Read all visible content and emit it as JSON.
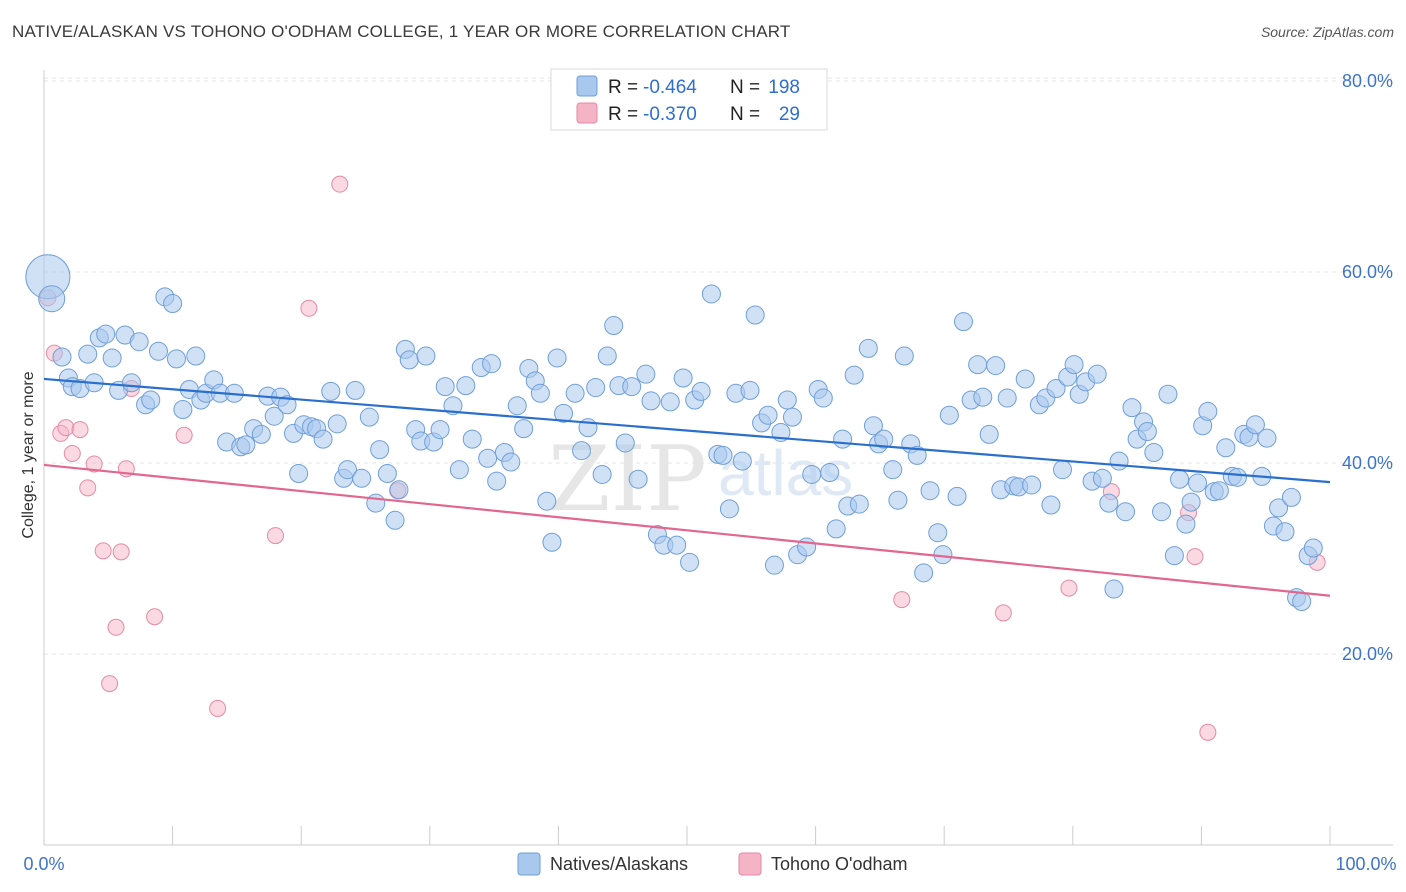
{
  "header": {
    "title": "NATIVE/ALASKAN VS TOHONO O'ODHAM COLLEGE, 1 YEAR OR MORE CORRELATION CHART",
    "source": "Source: ZipAtlas.com"
  },
  "watermark": {
    "zip": "ZIP",
    "atlas": "atlas"
  },
  "legend": {
    "rows": [
      {
        "r_label": "R =",
        "r_value": "-0.464",
        "n_label": "N =",
        "n_value": "198",
        "color": "#a9c8ee"
      },
      {
        "r_label": "R =",
        "r_value": "-0.370",
        "n_label": "N =",
        "n_value": "29",
        "color": "#f5b3c6"
      }
    ]
  },
  "chart_data": {
    "type": "scatter",
    "title": "NATIVE/ALASKAN VS TOHONO O'ODHAM COLLEGE, 1 YEAR OR MORE CORRELATION CHART",
    "ylabel": "College, 1 year or more",
    "xlabel": "",
    "xlim": [
      0,
      100
    ],
    "ylim": [
      0,
      82
    ],
    "x_tick_labels": [
      "0.0%",
      "100.0%"
    ],
    "y_ticks": [
      20,
      40,
      60,
      80
    ],
    "y_tick_labels": [
      "20.0%",
      "40.0%",
      "60.0%",
      "80.0%"
    ],
    "grid": true,
    "legend_position": "top-center",
    "series": [
      {
        "name": "Natives/Alaskans",
        "color": "#a9c8ee",
        "stroke": "#6f9fd8",
        "trend": {
          "x": [
            0,
            100
          ],
          "y": [
            48.8,
            38.0
          ],
          "color": "#2a6fcd"
        },
        "points": [
          [
            0.3,
            59.5,
            22
          ],
          [
            0.6,
            57.2,
            13
          ],
          [
            1.4,
            51.1,
            9
          ],
          [
            1.9,
            48.9,
            9
          ],
          [
            2.2,
            48.0,
            9
          ],
          [
            2.8,
            47.8,
            9
          ],
          [
            3.4,
            51.4,
            9
          ],
          [
            3.9,
            48.4,
            9
          ],
          [
            4.3,
            53.1,
            9
          ],
          [
            4.8,
            53.5,
            9
          ],
          [
            5.3,
            51.0,
            9
          ],
          [
            5.8,
            47.6,
            9
          ],
          [
            6.3,
            53.4,
            9
          ],
          [
            6.8,
            48.4,
            9
          ],
          [
            7.4,
            52.7,
            9
          ],
          [
            7.9,
            46.1,
            9
          ],
          [
            8.3,
            46.6,
            9
          ],
          [
            8.9,
            51.7,
            9
          ],
          [
            9.4,
            57.4,
            9
          ],
          [
            10.0,
            56.7,
            9
          ],
          [
            10.3,
            50.9,
            9
          ],
          [
            10.8,
            45.6,
            9
          ],
          [
            11.3,
            47.7,
            9
          ],
          [
            11.8,
            51.2,
            9
          ],
          [
            12.2,
            46.6,
            9
          ],
          [
            12.6,
            47.3,
            9
          ],
          [
            13.2,
            48.7,
            9
          ],
          [
            13.7,
            47.3,
            9
          ],
          [
            14.2,
            42.2,
            9
          ],
          [
            14.8,
            47.3,
            9
          ],
          [
            15.3,
            41.7,
            9
          ],
          [
            15.7,
            41.9,
            9
          ],
          [
            16.3,
            43.6,
            9
          ],
          [
            16.9,
            43.0,
            9
          ],
          [
            17.4,
            47.0,
            9
          ],
          [
            17.9,
            44.9,
            9
          ],
          [
            18.4,
            46.9,
            9
          ],
          [
            18.9,
            46.1,
            9
          ],
          [
            19.4,
            43.1,
            9
          ],
          [
            19.8,
            38.9,
            9
          ],
          [
            20.2,
            44.0,
            9
          ],
          [
            20.8,
            43.8,
            9
          ],
          [
            21.2,
            43.6,
            9
          ],
          [
            21.7,
            42.5,
            9
          ],
          [
            22.3,
            47.5,
            9
          ],
          [
            22.8,
            44.1,
            9
          ],
          [
            23.3,
            38.4,
            9
          ],
          [
            23.6,
            39.3,
            9
          ],
          [
            24.2,
            47.6,
            9
          ],
          [
            24.7,
            38.4,
            9
          ],
          [
            25.3,
            44.8,
            9
          ],
          [
            25.8,
            35.8,
            9
          ],
          [
            26.1,
            41.4,
            9
          ],
          [
            26.7,
            38.9,
            9
          ],
          [
            27.3,
            34.0,
            9
          ],
          [
            27.6,
            37.2,
            9
          ],
          [
            28.1,
            51.9,
            9
          ],
          [
            28.4,
            50.8,
            9
          ],
          [
            28.9,
            43.5,
            9
          ],
          [
            29.3,
            42.3,
            9
          ],
          [
            29.7,
            51.2,
            9
          ],
          [
            30.3,
            42.2,
            9
          ],
          [
            30.8,
            43.5,
            9
          ],
          [
            31.2,
            48.0,
            9
          ],
          [
            31.8,
            46.0,
            9
          ],
          [
            32.3,
            39.3,
            9
          ],
          [
            32.8,
            48.1,
            9
          ],
          [
            33.3,
            42.5,
            9
          ],
          [
            34.0,
            50.0,
            9
          ],
          [
            34.5,
            40.5,
            9
          ],
          [
            34.8,
            50.4,
            9
          ],
          [
            35.2,
            38.1,
            9
          ],
          [
            35.8,
            41.1,
            9
          ],
          [
            36.3,
            40.1,
            9
          ],
          [
            36.8,
            46.0,
            9
          ],
          [
            37.3,
            43.6,
            9
          ],
          [
            37.7,
            49.9,
            9
          ],
          [
            38.2,
            48.6,
            9
          ],
          [
            38.6,
            47.3,
            9
          ],
          [
            39.1,
            36.0,
            9
          ],
          [
            39.5,
            31.7,
            9
          ],
          [
            39.9,
            51.0,
            9
          ],
          [
            40.4,
            45.2,
            9
          ],
          [
            41.3,
            47.3,
            9
          ],
          [
            41.8,
            41.3,
            9
          ],
          [
            42.3,
            43.7,
            9
          ],
          [
            42.9,
            47.9,
            9
          ],
          [
            43.4,
            38.8,
            9
          ],
          [
            43.8,
            51.2,
            9
          ],
          [
            44.3,
            54.4,
            9
          ],
          [
            44.7,
            48.1,
            9
          ],
          [
            45.2,
            42.1,
            9
          ],
          [
            45.7,
            48.0,
            9
          ],
          [
            46.2,
            38.3,
            9
          ],
          [
            46.8,
            49.3,
            9
          ],
          [
            47.2,
            46.5,
            9
          ],
          [
            47.7,
            32.5,
            9
          ],
          [
            48.2,
            31.4,
            9
          ],
          [
            48.7,
            46.4,
            9
          ],
          [
            49.2,
            31.4,
            9
          ],
          [
            49.7,
            48.9,
            9
          ],
          [
            50.2,
            29.6,
            9
          ],
          [
            50.6,
            46.6,
            9
          ],
          [
            51.1,
            47.5,
            9
          ],
          [
            51.9,
            57.7,
            9
          ],
          [
            52.4,
            40.9,
            9
          ],
          [
            52.8,
            40.8,
            9
          ],
          [
            53.3,
            35.2,
            9
          ],
          [
            53.8,
            47.3,
            9
          ],
          [
            54.3,
            40.2,
            9
          ],
          [
            54.9,
            47.6,
            9
          ],
          [
            55.3,
            55.5,
            9
          ],
          [
            55.8,
            44.2,
            9
          ],
          [
            56.3,
            45.0,
            9
          ],
          [
            56.8,
            29.3,
            9
          ],
          [
            57.3,
            43.2,
            9
          ],
          [
            57.8,
            46.6,
            9
          ],
          [
            58.2,
            44.8,
            9
          ],
          [
            58.6,
            30.4,
            9
          ],
          [
            59.3,
            31.2,
            9
          ],
          [
            59.7,
            38.8,
            9
          ],
          [
            60.2,
            47.7,
            9
          ],
          [
            60.6,
            46.8,
            9
          ],
          [
            61.1,
            39.0,
            9
          ],
          [
            61.6,
            33.1,
            9
          ],
          [
            62.1,
            42.5,
            9
          ],
          [
            62.5,
            35.5,
            9
          ],
          [
            63.0,
            49.2,
            9
          ],
          [
            63.4,
            35.7,
            9
          ],
          [
            64.1,
            52.0,
            9
          ],
          [
            64.5,
            43.9,
            9
          ],
          [
            64.9,
            42.0,
            9
          ],
          [
            65.3,
            42.5,
            9
          ],
          [
            66.0,
            39.3,
            9
          ],
          [
            66.4,
            36.1,
            9
          ],
          [
            66.9,
            51.2,
            9
          ],
          [
            67.4,
            42.0,
            9
          ],
          [
            67.9,
            40.8,
            9
          ],
          [
            68.4,
            28.5,
            9
          ],
          [
            68.9,
            37.1,
            9
          ],
          [
            69.5,
            32.7,
            9
          ],
          [
            69.9,
            30.4,
            9
          ],
          [
            70.4,
            45.0,
            9
          ],
          [
            71.0,
            36.5,
            9
          ],
          [
            71.5,
            54.8,
            9
          ],
          [
            72.1,
            46.6,
            9
          ],
          [
            72.6,
            50.3,
            9
          ],
          [
            73.0,
            46.9,
            9
          ],
          [
            73.5,
            43.0,
            9
          ],
          [
            74.0,
            50.2,
            9
          ],
          [
            74.4,
            37.2,
            9
          ],
          [
            74.9,
            46.8,
            9
          ],
          [
            75.4,
            37.6,
            9
          ],
          [
            75.8,
            37.5,
            9
          ],
          [
            76.3,
            48.8,
            9
          ],
          [
            76.8,
            37.7,
            9
          ],
          [
            77.4,
            46.1,
            9
          ],
          [
            77.9,
            46.8,
            9
          ],
          [
            78.3,
            35.6,
            9
          ],
          [
            78.7,
            47.8,
            9
          ],
          [
            79.2,
            39.3,
            9
          ],
          [
            79.6,
            49.0,
            9
          ],
          [
            80.1,
            50.3,
            9
          ],
          [
            80.5,
            47.2,
            9
          ],
          [
            81.0,
            48.5,
            9
          ],
          [
            81.5,
            38.1,
            9
          ],
          [
            81.9,
            49.3,
            9
          ],
          [
            82.3,
            38.4,
            9
          ],
          [
            82.8,
            35.8,
            9
          ],
          [
            83.2,
            26.8,
            9
          ],
          [
            83.6,
            40.2,
            9
          ],
          [
            84.1,
            34.9,
            9
          ],
          [
            84.6,
            45.8,
            9
          ],
          [
            85.0,
            42.5,
            9
          ],
          [
            85.5,
            44.3,
            9
          ],
          [
            85.8,
            43.3,
            9
          ],
          [
            86.3,
            41.1,
            9
          ],
          [
            86.9,
            34.9,
            9
          ],
          [
            87.4,
            47.2,
            9
          ],
          [
            87.9,
            30.3,
            9
          ],
          [
            88.3,
            38.3,
            9
          ],
          [
            88.8,
            33.6,
            9
          ],
          [
            89.2,
            35.9,
            9
          ],
          [
            89.7,
            37.9,
            9
          ],
          [
            90.1,
            43.9,
            9
          ],
          [
            90.5,
            45.4,
            9
          ],
          [
            91.0,
            37.0,
            9
          ],
          [
            91.4,
            37.1,
            9
          ],
          [
            91.9,
            41.6,
            9
          ],
          [
            92.4,
            38.6,
            9
          ],
          [
            92.8,
            38.5,
            9
          ],
          [
            93.3,
            43.0,
            9
          ],
          [
            93.7,
            42.7,
            9
          ],
          [
            94.2,
            44.0,
            9
          ],
          [
            94.7,
            38.6,
            9
          ],
          [
            95.1,
            42.6,
            9
          ],
          [
            95.6,
            33.4,
            9
          ],
          [
            96.0,
            35.3,
            9
          ],
          [
            96.5,
            32.8,
            9
          ],
          [
            97.0,
            36.4,
            9
          ],
          [
            97.4,
            25.9,
            9
          ],
          [
            97.8,
            25.5,
            9
          ],
          [
            98.3,
            30.3,
            9
          ],
          [
            98.7,
            31.1,
            9
          ]
        ]
      },
      {
        "name": "Tohono O'odham",
        "color": "#f5b3c6",
        "stroke": "#e58aa6",
        "trend": {
          "x": [
            0,
            100
          ],
          "y": [
            39.8,
            26.1
          ],
          "color": "#e2668e"
        },
        "points": [
          [
            0.3,
            57.3
          ],
          [
            0.8,
            51.5
          ],
          [
            1.3,
            43.1
          ],
          [
            1.7,
            43.7
          ],
          [
            2.2,
            41.0
          ],
          [
            2.8,
            43.5
          ],
          [
            3.4,
            37.4
          ],
          [
            3.9,
            39.9
          ],
          [
            4.6,
            30.8
          ],
          [
            5.1,
            16.9
          ],
          [
            5.6,
            22.8
          ],
          [
            6.0,
            30.7
          ],
          [
            6.4,
            39.4
          ],
          [
            6.8,
            47.8
          ],
          [
            8.6,
            23.9
          ],
          [
            10.9,
            42.9
          ],
          [
            13.5,
            14.3
          ],
          [
            18.0,
            32.4
          ],
          [
            20.6,
            56.2
          ],
          [
            23.0,
            69.2
          ],
          [
            27.5,
            37.1
          ],
          [
            66.7,
            25.7
          ],
          [
            74.6,
            24.3
          ],
          [
            79.7,
            26.9
          ],
          [
            83.0,
            37.0
          ],
          [
            89.0,
            34.8
          ],
          [
            89.5,
            30.2
          ],
          [
            90.5,
            11.8
          ],
          [
            99.0,
            29.6
          ]
        ]
      }
    ]
  },
  "bottom_legend": {
    "items": [
      {
        "label": "Natives/Alaskans",
        "color": "#a9c8ee"
      },
      {
        "label": "Tohono O'odham",
        "color": "#f5b3c6"
      }
    ]
  }
}
